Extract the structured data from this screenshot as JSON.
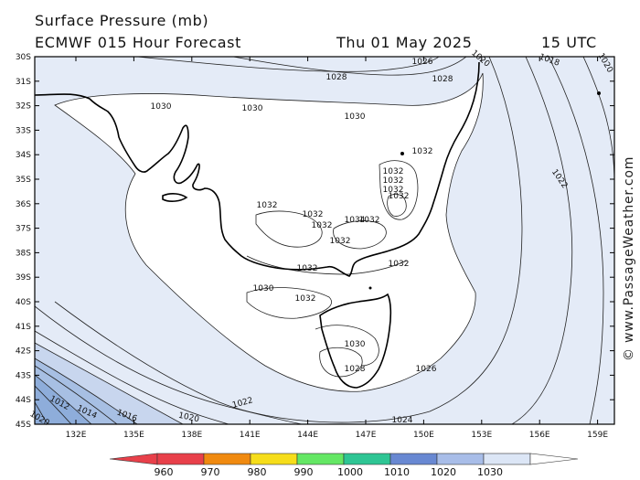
{
  "title": {
    "line1": "Surface Pressure (mb)",
    "model": "ECMWF 015 Hour Forecast",
    "date": "Thu 01 May 2025",
    "time": "15 UTC"
  },
  "credit": "© www.PassageWeather.com",
  "lat_labels": [
    "30S",
    "31S",
    "32S",
    "33S",
    "34S",
    "35S",
    "36S",
    "37S",
    "38S",
    "39S",
    "40S",
    "41S",
    "42S",
    "43S",
    "44S",
    "45S"
  ],
  "lon_labels": [
    "132E",
    "135E",
    "138E",
    "141E",
    "144E",
    "147E",
    "150E",
    "153E",
    "156E",
    "159E"
  ],
  "pressure_labels": [
    "1026",
    "1028",
    "1028",
    "1030",
    "1030",
    "1030",
    "1032",
    "1032",
    "1032",
    "1032",
    "1032",
    "1032",
    "1032",
    "1034",
    "1032",
    "1032",
    "1032",
    "1032",
    "1032",
    "1030",
    "1032",
    "1030",
    "1028",
    "1026",
    "1024",
    "1022",
    "1022",
    "1020",
    "1018",
    "1016",
    "1014",
    "1012",
    "1020",
    "1020",
    "1020"
  ],
  "colorbar": {
    "labels": [
      "960",
      "970",
      "980",
      "990",
      "1000",
      "1010",
      "1020",
      "1030"
    ],
    "colors": [
      "#e8404a",
      "#f08a10",
      "#f6dd1a",
      "#64e764",
      "#2ec594",
      "#6888d2",
      "#a8bde8",
      "#dce6f6"
    ]
  },
  "colors": {
    "band_1030": "#ffffff",
    "band_1020": "#e4ebf7",
    "band_1010": "#a7bfe3",
    "band_1000": "#7f9fd3"
  }
}
